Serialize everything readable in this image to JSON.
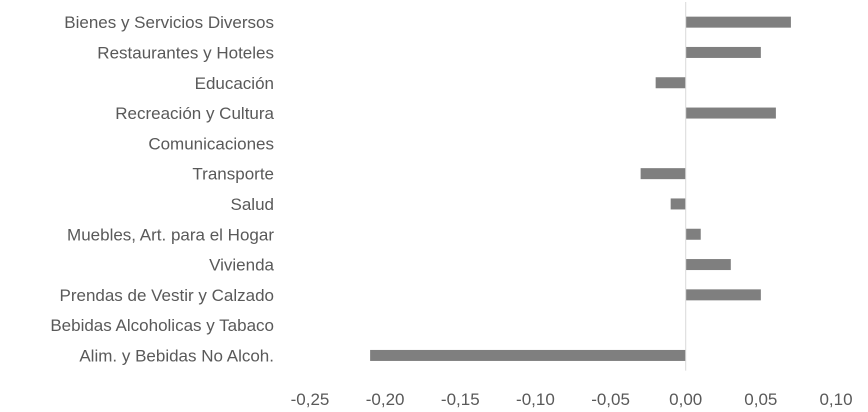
{
  "chart_data": {
    "type": "bar",
    "orientation": "horizontal",
    "categories": [
      "Bienes y Servicios Diversos",
      "Restaurantes y Hoteles",
      "Educación",
      "Recreación y Cultura",
      "Comunicaciones",
      "Transporte",
      "Salud",
      "Muebles, Art. para el Hogar",
      "Vivienda",
      "Prendas de Vestir y Calzado",
      "Bebidas Alcoholicas y Tabaco",
      "Alim. y Bebidas No Alcoh."
    ],
    "values": [
      0.07,
      0.05,
      -0.02,
      0.06,
      0.0,
      -0.03,
      -0.01,
      0.01,
      0.03,
      0.05,
      0.0,
      -0.21
    ],
    "xlim": [
      -0.25,
      0.1
    ],
    "xticks": [
      "-0,25",
      "-0,20",
      "-0,15",
      "-0,10",
      "-0,05",
      "0,00",
      "0,05",
      "0,10"
    ],
    "grid": false,
    "bar_color": "#7f7f7f",
    "zero_line_color": "#d9d9d9"
  }
}
